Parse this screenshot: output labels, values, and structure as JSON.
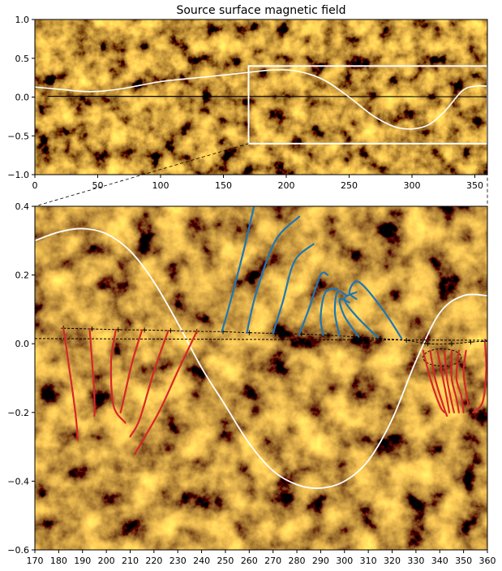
{
  "chart_data": [
    {
      "type": "image-map",
      "title": "Source surface magnetic field",
      "xlim": [
        0,
        360
      ],
      "ylim": [
        -1.0,
        1.0
      ],
      "xticks": [
        0,
        50,
        100,
        150,
        200,
        250,
        300,
        350
      ],
      "yticks": [
        1.0,
        0.5,
        0.0,
        -0.5,
        -1.0
      ],
      "ytick_labels": [
        "1.0",
        "0.5",
        "0.0",
        "−0.5",
        "−1.0"
      ],
      "background": "solar EUV synoptic map (orange/black)",
      "neutral_line": {
        "color": "#ffffff",
        "x": [
          0,
          20,
          45,
          70,
          100,
          130,
          160,
          190,
          210,
          230,
          250,
          270,
          290,
          310,
          325,
          340,
          350,
          360
        ],
        "y": [
          0.13,
          0.1,
          0.07,
          0.11,
          0.2,
          0.25,
          0.3,
          0.35,
          0.33,
          0.22,
          0.0,
          -0.25,
          -0.4,
          -0.38,
          -0.2,
          0.08,
          0.14,
          0.14
        ]
      },
      "zoom_box": {
        "x": [
          170,
          360
        ],
        "y": [
          -0.6,
          0.4
        ],
        "color": "#ffffff"
      },
      "black_line": {
        "x": [
          10,
          360
        ],
        "y": [
          0.01,
          0.005
        ]
      }
    },
    {
      "type": "image-map",
      "xlim": [
        170,
        360
      ],
      "ylim": [
        -0.6,
        0.4
      ],
      "xticks": [
        170,
        180,
        190,
        200,
        210,
        220,
        230,
        240,
        250,
        260,
        270,
        280,
        290,
        300,
        310,
        320,
        330,
        340,
        350,
        360
      ],
      "yticks": [
        0.4,
        0.2,
        0.0,
        -0.2,
        -0.4,
        -0.6
      ],
      "ytick_labels": [
        "0.4",
        "0.2",
        "0.0",
        "−0.2",
        "−0.4",
        "−0.6"
      ],
      "neutral_line": {
        "color": "#ffffff",
        "x": [
          170,
          180,
          190,
          200,
          210,
          220,
          230,
          240,
          250,
          260,
          270,
          280,
          290,
          300,
          310,
          320,
          330,
          340,
          350,
          360
        ],
        "y": [
          0.3,
          0.325,
          0.335,
          0.32,
          0.27,
          0.18,
          0.06,
          -0.07,
          -0.18,
          -0.29,
          -0.37,
          -0.41,
          -0.42,
          -0.4,
          -0.34,
          -0.22,
          -0.05,
          0.09,
          0.14,
          0.14
        ]
      },
      "footpoint_track": {
        "x": [
          182,
          194,
          205,
          216,
          227,
          238,
          249,
          260,
          271,
          282,
          293,
          304,
          315,
          326,
          335,
          345,
          353,
          359
        ],
        "y": [
          0.045,
          0.043,
          0.041,
          0.04,
          0.038,
          0.036,
          0.035,
          0.032,
          0.03,
          0.028,
          0.025,
          0.02,
          0.015,
          0.01,
          0.0,
          0.0,
          0.005,
          0.007
        ]
      },
      "reference_line": {
        "x": [
          170,
          360
        ],
        "y": [
          0.015,
          0.01
        ]
      },
      "series": [
        {
          "color": "#1f77b4",
          "polarity": "blue",
          "lines": [
            {
              "x": [
                248.5,
                252,
                258,
                262
              ],
              "y": [
                0.035,
                0.12,
                0.28,
                0.4
              ]
            },
            {
              "x": [
                259,
                263,
                271,
                281
              ],
              "y": [
                0.032,
                0.15,
                0.3,
                0.37
              ]
            },
            {
              "x": [
                270,
                274,
                279,
                287
              ],
              "y": [
                0.03,
                0.12,
                0.24,
                0.29
              ]
            },
            {
              "x": [
                281,
                285,
                290,
                293
              ],
              "y": [
                0.028,
                0.1,
                0.2,
                0.2
              ]
            },
            {
              "x": [
                291,
                290,
                292,
                297
              ],
              "y": [
                0.025,
                0.08,
                0.15,
                0.16
              ]
            },
            {
              "x": [
                298,
                296,
                297,
                301
              ],
              "y": [
                0.022,
                0.09,
                0.15,
                0.14
              ]
            },
            {
              "x": [
                306,
                300,
                298,
                302
              ],
              "y": [
                0.02,
                0.08,
                0.13,
                0.12
              ]
            },
            {
              "x": [
                314,
                305,
                300,
                305
              ],
              "y": [
                0.018,
                0.08,
                0.13,
                0.15
              ]
            },
            {
              "x": [
                324,
                316,
                306,
                302,
                305
              ],
              "y": [
                0.015,
                0.1,
                0.18,
                0.15,
                0.13
              ]
            }
          ]
        },
        {
          "color": "#d62728",
          "polarity": "red",
          "lines": [
            {
              "x": [
                182,
                184,
                187,
                188
              ],
              "y": [
                0.045,
                -0.05,
                -0.2,
                -0.28
              ]
            },
            {
              "x": [
                193,
                194,
                195,
                195
              ],
              "y": [
                0.043,
                -0.05,
                -0.15,
                -0.21
              ]
            },
            {
              "x": [
                204,
                202,
                203,
                208
              ],
              "y": [
                0.041,
                -0.05,
                -0.18,
                -0.23
              ]
            },
            {
              "x": [
                215,
                211,
                208,
                206
              ],
              "y": [
                0.04,
                -0.05,
                -0.14,
                -0.2
              ]
            },
            {
              "x": [
                226,
                220,
                214,
                210
              ],
              "y": [
                0.038,
                -0.08,
                -0.22,
                -0.27
              ]
            },
            {
              "x": [
                238,
                230,
                222,
                212
              ],
              "y": [
                0.036,
                -0.08,
                -0.2,
                -0.32
              ]
            },
            {
              "x": [
                333,
                336,
                340,
                342
              ],
              "y": [
                -0.02,
                -0.1,
                -0.18,
                -0.2
              ]
            },
            {
              "x": [
                336,
                338,
                341,
                343
              ],
              "y": [
                -0.02,
                -0.1,
                -0.17,
                -0.21
              ]
            },
            {
              "x": [
                339,
                341,
                343,
                344
              ],
              "y": [
                -0.02,
                -0.09,
                -0.16,
                -0.2
              ]
            },
            {
              "x": [
                342,
                343,
                345,
                346
              ],
              "y": [
                -0.02,
                -0.1,
                -0.17,
                -0.2
              ]
            },
            {
              "x": [
                345,
                345,
                347,
                348
              ],
              "y": [
                -0.02,
                -0.1,
                -0.16,
                -0.2
              ]
            },
            {
              "x": [
                348,
                347,
                349,
                350
              ],
              "y": [
                -0.02,
                -0.1,
                -0.15,
                -0.2
              ]
            },
            {
              "x": [
                351,
                350,
                351,
                352
              ],
              "y": [
                -0.02,
                -0.08,
                -0.14,
                -0.18
              ]
            },
            {
              "x": [
                359,
                359.5,
                358,
                354
              ],
              "y": [
                0.005,
                -0.08,
                -0.17,
                -0.2
              ]
            }
          ]
        }
      ],
      "ellipse": {
        "cx": 341,
        "cy": -0.04,
        "rx": 8,
        "ry": 0.025
      }
    }
  ]
}
